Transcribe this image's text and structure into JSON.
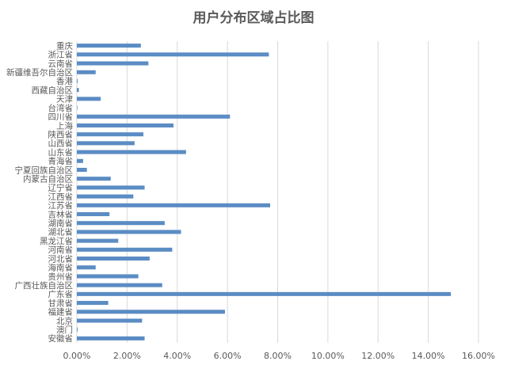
{
  "chart_data": {
    "type": "bar",
    "orientation": "horizontal",
    "title": "用户分布区域占比图",
    "xlabel": "",
    "ylabel": "",
    "xlim": [
      0,
      0.16
    ],
    "x_ticks": [
      0,
      0.02,
      0.04,
      0.06,
      0.08,
      0.1,
      0.12,
      0.14,
      0.16
    ],
    "x_tick_labels": [
      "0.00%",
      "2.00%",
      "4.00%",
      "6.00%",
      "8.00%",
      "10.00%",
      "12.00%",
      "14.00%",
      "16.00%"
    ],
    "grid": true,
    "bar_color": "#5b8cc4",
    "categories": [
      "重庆",
      "浙江省",
      "云南省",
      "新疆维吾尔自治区",
      "香港",
      "西藏自治区",
      "天津",
      "台湾省",
      "四川省",
      "上海",
      "陕西省",
      "山西省",
      "山东省",
      "青海省",
      "宁夏回族自治区",
      "内蒙古自治区",
      "辽宁省",
      "江西省",
      "江苏省",
      "吉林省",
      "湖南省",
      "湖北省",
      "黑龙江省",
      "河南省",
      "河北省",
      "海南省",
      "贵州省",
      "广西壮族自治区",
      "广东省",
      "甘肃省",
      "福建省",
      "北京",
      "澳门",
      "安徽省"
    ],
    "values": [
      0.0255,
      0.0765,
      0.0285,
      0.0075,
      0.0003,
      0.0008,
      0.0095,
      0.0002,
      0.061,
      0.0385,
      0.0265,
      0.023,
      0.0435,
      0.0025,
      0.004,
      0.0135,
      0.027,
      0.0225,
      0.077,
      0.013,
      0.035,
      0.0415,
      0.0165,
      0.038,
      0.029,
      0.0075,
      0.0245,
      0.034,
      0.149,
      0.0125,
      0.059,
      0.026,
      0.0003,
      0.027
    ]
  }
}
